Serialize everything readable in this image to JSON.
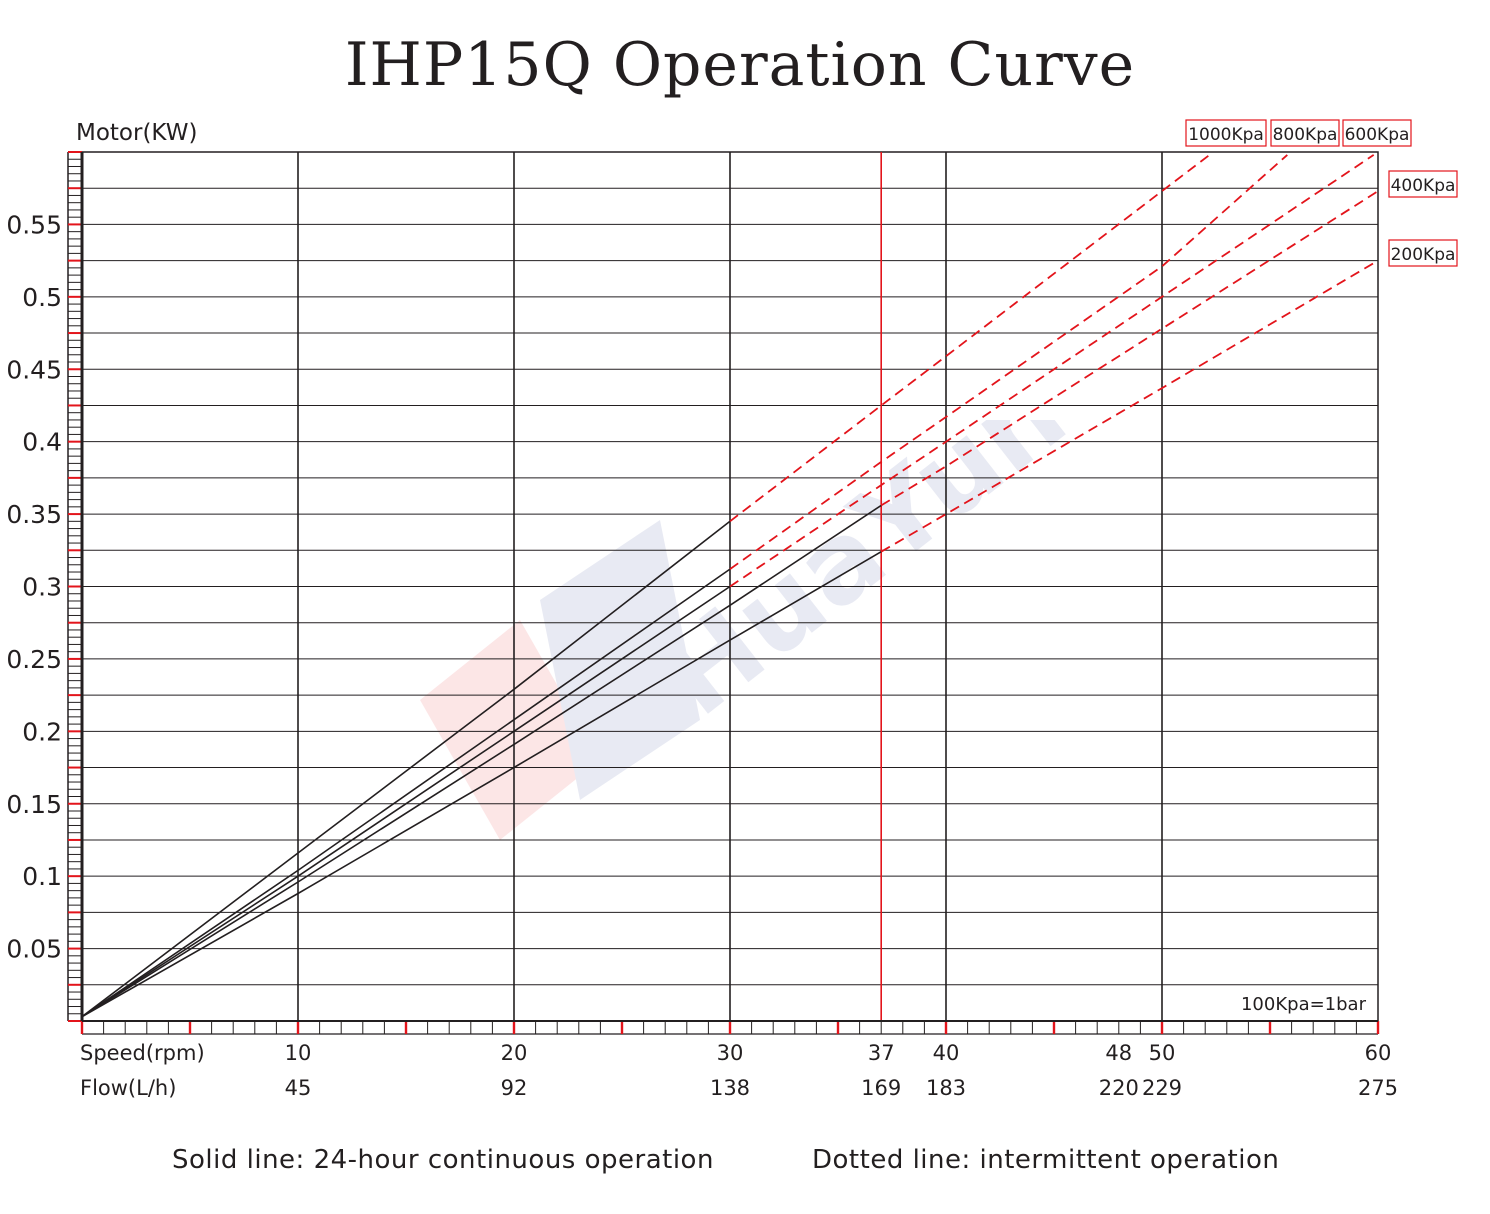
{
  "title": "IHP15Q Operation Curve",
  "notes": {
    "solid": "Solid line: 24-hour continuous operation",
    "dotted": "Dotted line: intermittent operation",
    "unit_note": "100Kpa=1bar"
  },
  "colors": {
    "grid": "#231f20",
    "accent": "#e3141b",
    "curve": "#231f20"
  },
  "chart_data": {
    "type": "line",
    "title": "IHP15Q Operation Curve",
    "ylabel": "Motor(KW)",
    "xlabel": "Speed(rpm)",
    "xlabel2": "Flow(L/h)",
    "xlim": [
      0,
      60
    ],
    "ylim": [
      0,
      0.6
    ],
    "x_ticks": [
      {
        "speed": 10,
        "speed_label": "10",
        "flow_label": "45"
      },
      {
        "speed": 20,
        "speed_label": "20",
        "flow_label": "92"
      },
      {
        "speed": 30,
        "speed_label": "30",
        "flow_label": "138"
      },
      {
        "speed": 37,
        "speed_label": "37",
        "flow_label": "169"
      },
      {
        "speed": 40,
        "speed_label": "40",
        "flow_label": "183"
      },
      {
        "speed": 48,
        "speed_label": "48",
        "flow_label": "220"
      },
      {
        "speed": 50,
        "speed_label": "50",
        "flow_label": "229"
      },
      {
        "speed": 60,
        "speed_label": "60",
        "flow_label": "275"
      }
    ],
    "y_ticks": [
      {
        "value": 0.05,
        "label": "0.05"
      },
      {
        "value": 0.1,
        "label": "0.1"
      },
      {
        "value": 0.15,
        "label": "0.15"
      },
      {
        "value": 0.2,
        "label": "0.2"
      },
      {
        "value": 0.25,
        "label": "0.25"
      },
      {
        "value": 0.3,
        "label": "0.3"
      },
      {
        "value": 0.35,
        "label": "0.35"
      },
      {
        "value": 0.4,
        "label": "0.4"
      },
      {
        "value": 0.45,
        "label": "0.45"
      },
      {
        "value": 0.5,
        "label": "0.5"
      },
      {
        "value": 0.55,
        "label": "0.55"
      }
    ],
    "vertical_lines": [
      10,
      20,
      30,
      40,
      50
    ],
    "highlight_line": 37,
    "grid": true,
    "series": [
      {
        "name": "1000Kpa",
        "solid": [
          [
            0,
            0.003
          ],
          [
            10,
            0.116
          ],
          [
            20,
            0.229
          ],
          [
            30,
            0.345
          ]
        ],
        "dotted": [
          [
            30,
            0.345
          ],
          [
            37,
            0.425
          ],
          [
            40,
            0.459
          ],
          [
            50,
            0.573
          ],
          [
            52.2,
            0.598
          ]
        ]
      },
      {
        "name": "800Kpa",
        "solid": [
          [
            0,
            0.003
          ],
          [
            10,
            0.104
          ],
          [
            20,
            0.208
          ],
          [
            30,
            0.312
          ]
        ],
        "dotted": [
          [
            30,
            0.312
          ],
          [
            37,
            0.386
          ],
          [
            40,
            0.417
          ],
          [
            50,
            0.521
          ],
          [
            55.8,
            0.598
          ]
        ]
      },
      {
        "name": "600Kpa",
        "solid": [
          [
            0,
            0.003
          ],
          [
            10,
            0.1
          ],
          [
            20,
            0.2
          ],
          [
            30,
            0.3
          ]
        ],
        "dotted": [
          [
            30,
            0.3
          ],
          [
            37,
            0.37
          ],
          [
            40,
            0.4
          ],
          [
            50,
            0.5
          ],
          [
            59.8,
            0.598
          ]
        ]
      },
      {
        "name": "400Kpa",
        "solid": [
          [
            0,
            0.003
          ],
          [
            10,
            0.096
          ],
          [
            20,
            0.191
          ],
          [
            30,
            0.287
          ],
          [
            37,
            0.356
          ]
        ],
        "dotted": [
          [
            37,
            0.356
          ],
          [
            40,
            0.383
          ],
          [
            50,
            0.478
          ],
          [
            60,
            0.573
          ]
        ]
      },
      {
        "name": "200Kpa",
        "solid": [
          [
            0,
            0.003
          ],
          [
            10,
            0.088
          ],
          [
            20,
            0.175
          ],
          [
            30,
            0.263
          ],
          [
            37,
            0.324
          ]
        ],
        "dotted": [
          [
            37,
            0.324
          ],
          [
            40,
            0.35
          ],
          [
            50,
            0.437
          ],
          [
            60,
            0.525
          ]
        ]
      }
    ]
  }
}
